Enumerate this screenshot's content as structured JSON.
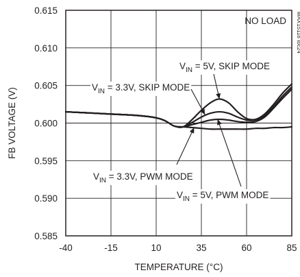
{
  "chart_data": {
    "type": "line",
    "xlabel": "TEMPERATURE (°C)",
    "ylabel": "FB VOLTAGE (V)",
    "xlim": [
      -40,
      85
    ],
    "ylim": [
      0.585,
      0.615
    ],
    "x_ticks": [
      -40,
      -15,
      10,
      35,
      60,
      85
    ],
    "y_ticks": [
      0.585,
      0.59,
      0.595,
      0.6,
      0.605,
      0.61,
      0.615
    ],
    "x_tick_labels": [
      "-40",
      "-15",
      "10",
      "35",
      "60",
      "85"
    ],
    "y_tick_labels": [
      "0.585",
      "0.590",
      "0.595",
      "0.600",
      "0.605",
      "0.610",
      "0.615"
    ],
    "grid": true,
    "corner_label": "NO LOAD",
    "figure_id": "MAX15118 toc24",
    "series": [
      {
        "name": "VIN = 5V, SKIP MODE",
        "x": [
          -40,
          -15,
          0,
          10,
          15,
          20,
          25,
          30,
          35,
          40,
          45,
          50,
          55,
          60,
          65,
          70,
          75,
          80,
          85
        ],
        "y": [
          0.6015,
          0.6012,
          0.601,
          0.6007,
          0.6003,
          0.5996,
          0.5995,
          0.6005,
          0.6017,
          0.6027,
          0.6032,
          0.6027,
          0.6015,
          0.6006,
          0.6005,
          0.6012,
          0.6025,
          0.604,
          0.6052
        ]
      },
      {
        "name": "VIN = 3.3V, SKIP MODE",
        "x": [
          -40,
          -15,
          0,
          10,
          15,
          20,
          25,
          30,
          35,
          40,
          45,
          50,
          55,
          60,
          65,
          70,
          75,
          80,
          85
        ],
        "y": [
          0.6015,
          0.6012,
          0.601,
          0.6007,
          0.6003,
          0.5996,
          0.5995,
          0.6001,
          0.6008,
          0.6013,
          0.6015,
          0.6013,
          0.6008,
          0.6004,
          0.6004,
          0.601,
          0.6022,
          0.6036,
          0.6048
        ]
      },
      {
        "name": "VIN = 5V, PWM MODE",
        "x": [
          -40,
          -15,
          0,
          10,
          15,
          20,
          25,
          30,
          35,
          40,
          45,
          50,
          55,
          60,
          65,
          70,
          75,
          80,
          85
        ],
        "y": [
          0.6015,
          0.6012,
          0.601,
          0.6007,
          0.6003,
          0.5996,
          0.5995,
          0.5998,
          0.6001,
          0.6004,
          0.6005,
          0.6004,
          0.6002,
          0.6001,
          0.6002,
          0.6008,
          0.602,
          0.6033,
          0.6045
        ]
      },
      {
        "name": "VIN = 3.3V, PWM MODE",
        "x": [
          -40,
          -15,
          0,
          10,
          15,
          20,
          25,
          30,
          35,
          40,
          45,
          50,
          55,
          60,
          65,
          70,
          75,
          80,
          85
        ],
        "y": [
          0.6015,
          0.6012,
          0.601,
          0.6007,
          0.6003,
          0.5996,
          0.5995,
          0.5994,
          0.5993,
          0.5992,
          0.5992,
          0.5992,
          0.5992,
          0.5992,
          0.5993,
          0.5993,
          0.5994,
          0.5994,
          0.5995
        ]
      }
    ],
    "annotations": [
      {
        "text_main": "V",
        "text_sub": "IN",
        "text_rest": " = 5V, SKIP MODE",
        "points_to": [
          45,
          0.6032
        ]
      },
      {
        "text_main": "V",
        "text_sub": "IN",
        "text_rest": " = 3.3V, SKIP MODE",
        "points_to": [
          37,
          0.6011
        ]
      },
      {
        "text_main": "V",
        "text_sub": "IN",
        "text_rest": " = 3.3V, PWM MODE",
        "points_to": [
          31,
          0.5994
        ]
      },
      {
        "text_main": "V",
        "text_sub": "IN",
        "text_rest": " = 5V, PWM MODE",
        "points_to": [
          44,
          0.6005
        ]
      }
    ]
  }
}
